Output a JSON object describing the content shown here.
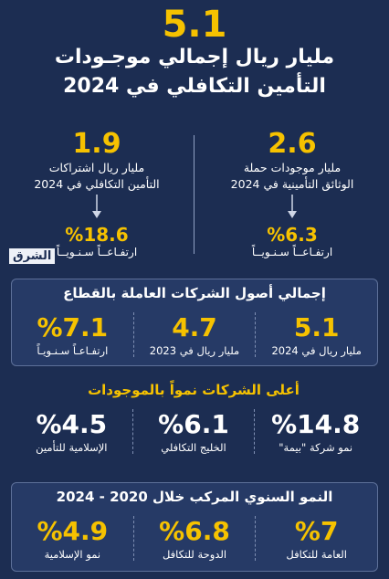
{
  "header": {
    "value": "5.1",
    "title_lines": [
      "مليار ريال إجمالي موجـودات",
      "التأمين التكافلي في 2024"
    ]
  },
  "highlights": [
    {
      "value": "2.6",
      "lines": [
        "مليار موجودات حملة",
        "الوثائق التأمينية في 2024"
      ],
      "change": "%6.3",
      "change_label": "ارتفـاعــاً سـنـويــاً"
    },
    {
      "value": "1.9",
      "lines": [
        "مليار ريال اشتراكات",
        "التأمين التكافلي في 2024"
      ],
      "change": "%18.6",
      "change_label": "ارتفـاعــاً سـنـويــاً"
    }
  ],
  "logo": "الشرق",
  "sections": [
    {
      "title": "إجمالي أصول الشركات العاملة بالقطاع",
      "items": [
        {
          "value": "5.1",
          "label": "مليار ريال في 2024"
        },
        {
          "value": "4.7",
          "label": "مليار ريال في 2023"
        },
        {
          "value": "%7.1",
          "label": "ارتفـاعـاً سـنـويـاً"
        }
      ]
    },
    {
      "title": "أعلى الشركات نمواً بالموجودات",
      "items": [
        {
          "value": "%14.8",
          "label": "نمو شركة \"بيمة\""
        },
        {
          "value": "%6.1",
          "label": "الخليج التكافلي"
        },
        {
          "value": "%4.5",
          "label": "الإسلامية للتأمين"
        }
      ]
    },
    {
      "title": "النمو السنوي المركب خلال 2020 - 2024",
      "items": [
        {
          "value": "%7",
          "label": "العامة للتكافل"
        },
        {
          "value": "%6.8",
          "label": "الدوحة للتكافل"
        },
        {
          "value": "%4.9",
          "label": "نمو الإسلامية"
        }
      ]
    }
  ]
}
